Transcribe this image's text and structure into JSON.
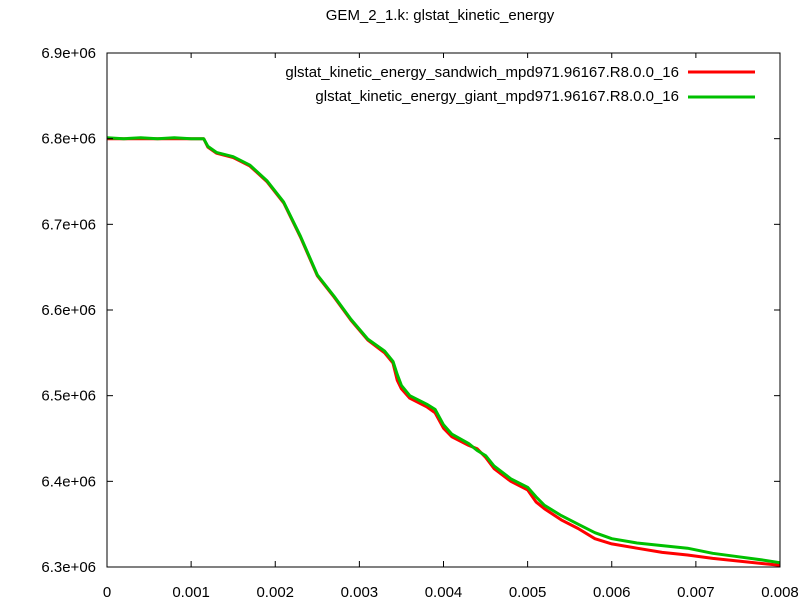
{
  "chart_data": {
    "type": "line",
    "title": "GEM_2_1.k: glstat_kinetic_energy",
    "xlabel": "",
    "ylabel": "",
    "xlim": [
      0,
      0.008
    ],
    "ylim": [
      6300000,
      6900000
    ],
    "x_tick_values": [
      0,
      0.001,
      0.002,
      0.003,
      0.004,
      0.005,
      0.006,
      0.007,
      0.008
    ],
    "x_tick_labels": [
      "0",
      "0.001",
      "0.002",
      "0.003",
      "0.004",
      "0.005",
      "0.006",
      "0.007",
      "0.008"
    ],
    "y_tick_values": [
      6300000,
      6400000,
      6500000,
      6600000,
      6700000,
      6800000,
      6900000
    ],
    "y_tick_labels": [
      "6.3e+06",
      "6.4e+06",
      "6.5e+06",
      "6.6e+06",
      "6.7e+06",
      "6.8e+06",
      "6.9e+06"
    ],
    "grid": false,
    "legend_position": "top-right",
    "series": [
      {
        "name": "glstat_kinetic_energy_sandwich_mpd971.96167.R8.0.0_16",
        "color": "#ff0000",
        "x": [
          0,
          0.0002,
          0.0004,
          0.0006,
          0.0008,
          0.001,
          0.00115,
          0.0012,
          0.0013,
          0.0015,
          0.0017,
          0.0019,
          0.0021,
          0.0023,
          0.0025,
          0.0027,
          0.0029,
          0.0031,
          0.0033,
          0.0034,
          0.00345,
          0.0035,
          0.0036,
          0.0038,
          0.0039,
          0.004,
          0.0041,
          0.0043,
          0.0044,
          0.0045,
          0.0046,
          0.0048,
          0.005,
          0.0051,
          0.0052,
          0.0054,
          0.0056,
          0.0058,
          0.006,
          0.0063,
          0.0066,
          0.0069,
          0.0072,
          0.0075,
          0.0078,
          0.008
        ],
        "values": [
          6800000,
          6800000,
          6800000,
          6800000,
          6800000,
          6800000,
          6800000,
          6790000,
          6783000,
          6778000,
          6768000,
          6750000,
          6725000,
          6685000,
          6640000,
          6615000,
          6588000,
          6565000,
          6550000,
          6538000,
          6518000,
          6508000,
          6497000,
          6487000,
          6480000,
          6462000,
          6452000,
          6442000,
          6438000,
          6428000,
          6415000,
          6400000,
          6390000,
          6376000,
          6368000,
          6355000,
          6345000,
          6333000,
          6327000,
          6322000,
          6317000,
          6314000,
          6310000,
          6307000,
          6304000,
          6302000
        ]
      },
      {
        "name": "glstat_kinetic_energy_giant_mpd971.96167.R8.0.0_16",
        "color": "#00c000",
        "x": [
          0,
          0.0002,
          0.0004,
          0.0006,
          0.0008,
          0.001,
          0.00115,
          0.0012,
          0.0013,
          0.0015,
          0.0017,
          0.0019,
          0.0021,
          0.0023,
          0.0025,
          0.0027,
          0.0029,
          0.0031,
          0.0033,
          0.0034,
          0.00345,
          0.0035,
          0.0036,
          0.0038,
          0.0039,
          0.004,
          0.0041,
          0.0043,
          0.0044,
          0.0045,
          0.0046,
          0.0048,
          0.005,
          0.0051,
          0.0052,
          0.0054,
          0.0056,
          0.0058,
          0.006,
          0.0063,
          0.0066,
          0.0069,
          0.0072,
          0.0075,
          0.0078,
          0.008
        ],
        "values": [
          6801000,
          6800000,
          6801000,
          6800000,
          6801000,
          6800000,
          6800000,
          6791000,
          6784000,
          6779000,
          6769000,
          6751000,
          6726000,
          6686000,
          6641000,
          6616000,
          6589000,
          6566000,
          6552000,
          6540000,
          6525000,
          6512000,
          6500000,
          6490000,
          6484000,
          6466000,
          6455000,
          6444000,
          6436000,
          6430000,
          6418000,
          6403000,
          6393000,
          6382000,
          6372000,
          6360000,
          6350000,
          6340000,
          6333000,
          6328000,
          6325000,
          6322000,
          6316000,
          6312000,
          6308000,
          6305000
        ]
      }
    ]
  }
}
